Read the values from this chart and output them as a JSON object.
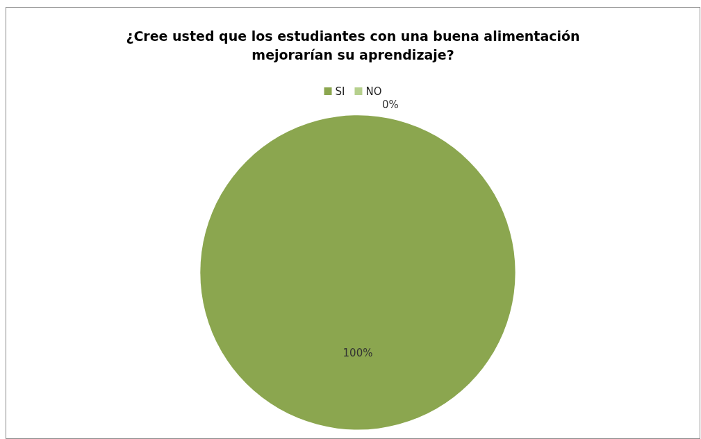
{
  "chart_data": {
    "type": "pie",
    "title": "¿Cree usted que los estudiantes con una buena alimentación mejorarían su aprendizaje?",
    "categories": [
      "SI",
      "NO"
    ],
    "values": [
      100,
      0
    ],
    "colors": [
      "#8ba64f",
      "#b6d08d"
    ],
    "legend": "top",
    "value_labels": [
      "100%",
      "0%"
    ]
  }
}
